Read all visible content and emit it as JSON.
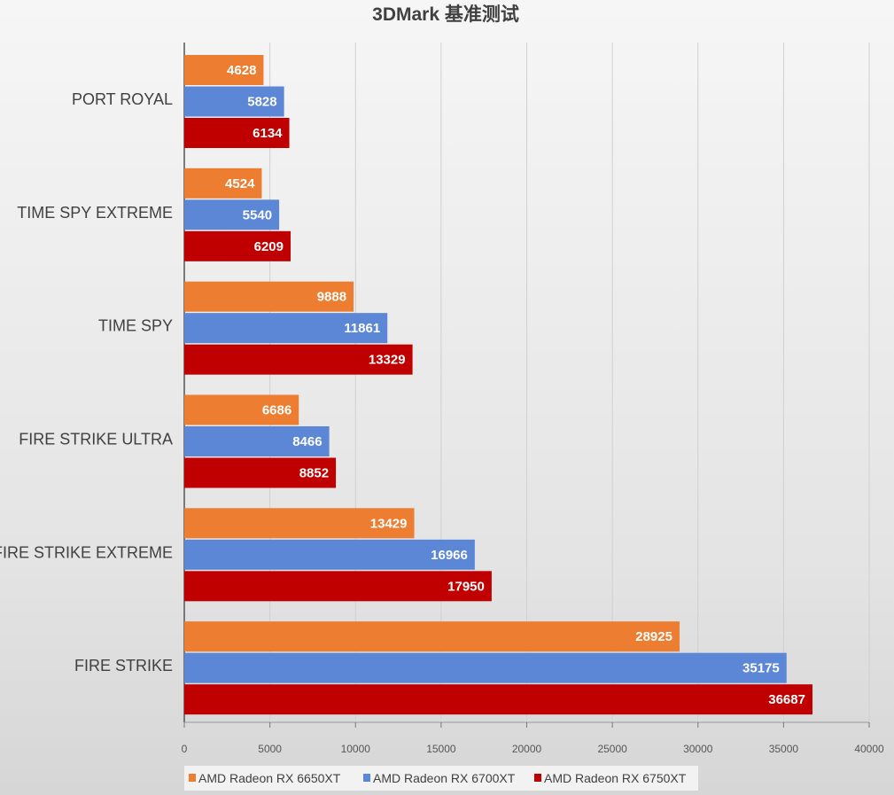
{
  "chart_data": {
    "type": "bar",
    "orientation": "horizontal",
    "title": "3DMark 基准测试",
    "categories": [
      "PORT ROYAL",
      "TIME SPY EXTREME",
      "TIME SPY",
      "FIRE STRIKE ULTRA",
      "FIRE STRIKE EXTREME",
      "FIRE STRIKE"
    ],
    "series": [
      {
        "name": "AMD Radeon RX 6650XT",
        "color": "#ed7d31",
        "values": [
          4628,
          4524,
          9888,
          6686,
          13429,
          28925
        ]
      },
      {
        "name": "AMD Radeon RX 6700XT",
        "color": "#5b87d6",
        "values": [
          5828,
          5540,
          11861,
          8466,
          16966,
          35175
        ]
      },
      {
        "name": "AMD Radeon RX 6750XT",
        "color": "#c00000",
        "values": [
          6134,
          6209,
          13329,
          8852,
          17950,
          36687
        ]
      }
    ],
    "xlim": [
      0,
      40000
    ],
    "xticks": [
      0,
      5000,
      10000,
      15000,
      20000,
      25000,
      30000,
      35000,
      40000
    ],
    "grid": true,
    "data_labels": true,
    "legend_position": "bottom-left"
  }
}
